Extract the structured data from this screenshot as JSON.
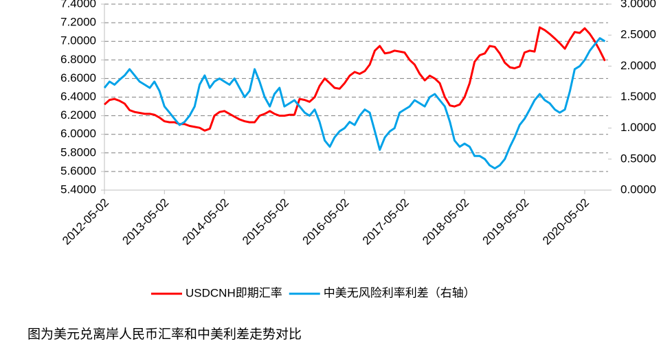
{
  "chart_data": {
    "type": "line",
    "caption": "图为美元兑离岸人民币汇率和中美利差走势对比",
    "x": [
      "2012-05-02",
      "2012-06-02",
      "2012-07-02",
      "2012-08-02",
      "2012-09-02",
      "2012-10-02",
      "2012-11-02",
      "2012-12-02",
      "2013-01-02",
      "2013-02-02",
      "2013-03-02",
      "2013-04-02",
      "2013-05-02",
      "2013-06-02",
      "2013-07-02",
      "2013-08-02",
      "2013-09-02",
      "2013-10-02",
      "2013-11-02",
      "2013-12-02",
      "2014-01-02",
      "2014-02-02",
      "2014-03-02",
      "2014-04-02",
      "2014-05-02",
      "2014-06-02",
      "2014-07-02",
      "2014-08-02",
      "2014-09-02",
      "2014-10-02",
      "2014-11-02",
      "2014-12-02",
      "2015-01-02",
      "2015-02-02",
      "2015-03-02",
      "2015-04-02",
      "2015-05-02",
      "2015-06-02",
      "2015-07-02",
      "2015-08-02",
      "2015-09-02",
      "2015-10-02",
      "2015-11-02",
      "2015-12-02",
      "2016-01-02",
      "2016-02-02",
      "2016-03-02",
      "2016-04-02",
      "2016-05-02",
      "2016-06-02",
      "2016-07-02",
      "2016-08-02",
      "2016-09-02",
      "2016-10-02",
      "2016-11-02",
      "2016-12-02",
      "2017-01-02",
      "2017-02-02",
      "2017-03-02",
      "2017-04-02",
      "2017-05-02",
      "2017-06-02",
      "2017-07-02",
      "2017-08-02",
      "2017-09-02",
      "2017-10-02",
      "2017-11-02",
      "2017-12-02",
      "2018-01-02",
      "2018-02-02",
      "2018-03-02",
      "2018-04-02",
      "2018-05-02",
      "2018-06-02",
      "2018-07-02",
      "2018-08-02",
      "2018-09-02",
      "2018-10-02",
      "2018-11-02",
      "2018-12-02",
      "2019-01-02",
      "2019-02-02",
      "2019-03-02",
      "2019-04-02",
      "2019-05-02",
      "2019-06-02",
      "2019-07-02",
      "2019-08-02",
      "2019-09-02",
      "2019-10-02",
      "2019-11-02",
      "2019-12-02",
      "2020-01-02",
      "2020-02-02",
      "2020-03-02",
      "2020-04-02",
      "2020-05-02",
      "2020-06-02",
      "2020-07-02",
      "2020-08-02",
      "2020-09-02"
    ],
    "series": [
      {
        "name": "USDCNH即期汇率",
        "color": "#ff0000",
        "values": [
          6.32,
          6.37,
          6.38,
          6.36,
          6.33,
          6.26,
          6.24,
          6.23,
          6.22,
          6.22,
          6.21,
          6.18,
          6.14,
          6.13,
          6.13,
          6.11,
          6.11,
          6.09,
          6.08,
          6.07,
          6.04,
          6.06,
          6.2,
          6.24,
          6.25,
          6.22,
          6.19,
          6.16,
          6.14,
          6.13,
          6.13,
          6.2,
          6.22,
          6.25,
          6.22,
          6.2,
          6.2,
          6.21,
          6.21,
          6.38,
          6.37,
          6.35,
          6.4,
          6.52,
          6.6,
          6.55,
          6.5,
          6.49,
          6.55,
          6.63,
          6.67,
          6.65,
          6.68,
          6.75,
          6.9,
          6.95,
          6.87,
          6.88,
          6.9,
          6.89,
          6.88,
          6.8,
          6.75,
          6.65,
          6.58,
          6.63,
          6.6,
          6.55,
          6.4,
          6.31,
          6.3,
          6.32,
          6.4,
          6.55,
          6.78,
          6.85,
          6.87,
          6.95,
          6.94,
          6.87,
          6.77,
          6.72,
          6.71,
          6.73,
          6.88,
          6.9,
          6.89,
          7.15,
          7.12,
          7.08,
          7.03,
          6.98,
          6.92,
          7.02,
          7.1,
          7.09,
          7.14,
          7.08,
          7.0,
          6.9,
          6.79
        ]
      },
      {
        "name": "中美无风险利率利差（右轴）",
        "color": "#00a2e8",
        "axis": "y2",
        "values": [
          1.65,
          1.75,
          1.7,
          1.78,
          1.85,
          1.95,
          1.85,
          1.75,
          1.7,
          1.65,
          1.75,
          1.6,
          1.35,
          1.25,
          1.15,
          1.05,
          1.1,
          1.2,
          1.35,
          1.7,
          1.85,
          1.65,
          1.75,
          1.8,
          1.75,
          1.7,
          1.8,
          1.65,
          1.5,
          1.6,
          1.95,
          1.75,
          1.5,
          1.35,
          1.55,
          1.65,
          1.35,
          1.4,
          1.45,
          1.35,
          1.25,
          1.2,
          1.3,
          1.1,
          0.8,
          0.7,
          0.85,
          0.95,
          1.0,
          1.1,
          1.05,
          1.2,
          1.3,
          1.25,
          0.95,
          0.65,
          0.85,
          0.95,
          1.0,
          1.25,
          1.3,
          1.35,
          1.45,
          1.4,
          1.35,
          1.5,
          1.55,
          1.45,
          1.35,
          1.1,
          0.8,
          0.7,
          0.75,
          0.7,
          0.55,
          0.55,
          0.5,
          0.4,
          0.35,
          0.4,
          0.5,
          0.7,
          0.85,
          1.05,
          1.15,
          1.3,
          1.45,
          1.55,
          1.45,
          1.4,
          1.3,
          1.25,
          1.3,
          1.6,
          1.95,
          2.0,
          2.1,
          2.25,
          2.35,
          2.45,
          2.4
        ]
      }
    ],
    "xticks": [
      "2012-05-02",
      "2013-05-02",
      "2014-05-02",
      "2015-05-02",
      "2016-05-02",
      "2017-05-02",
      "2018-05-02",
      "2019-05-02",
      "2020-05-02"
    ],
    "ylim": [
      5.4,
      7.4
    ],
    "yticks": [
      {
        "value": 5.4,
        "label": "5.4000"
      },
      {
        "value": 5.6,
        "label": "5.6000"
      },
      {
        "value": 5.8,
        "label": "5.8000"
      },
      {
        "value": 6.0,
        "label": "6.0000"
      },
      {
        "value": 6.2,
        "label": "6.2000"
      },
      {
        "value": 6.4,
        "label": "6.4000"
      },
      {
        "value": 6.6,
        "label": "6.6000"
      },
      {
        "value": 6.8,
        "label": "6.8000"
      },
      {
        "value": 7.0,
        "label": "7.0000"
      },
      {
        "value": 7.2,
        "label": "7.2000"
      },
      {
        "value": 7.4,
        "label": "7.4000"
      }
    ],
    "y2lim": [
      0,
      3
    ],
    "y2ticks": [
      {
        "value": 0,
        "label": "0.0000"
      },
      {
        "value": 0.5,
        "label": "0.5000"
      },
      {
        "value": 1.0,
        "label": "1.0000"
      },
      {
        "value": 1.5,
        "label": "1.5000"
      },
      {
        "value": 2.0,
        "label": "2.0000"
      },
      {
        "value": 2.5,
        "label": "2.5000"
      },
      {
        "value": 3.0,
        "label": "3.0000"
      }
    ],
    "grid": true,
    "legend": "bottom"
  }
}
